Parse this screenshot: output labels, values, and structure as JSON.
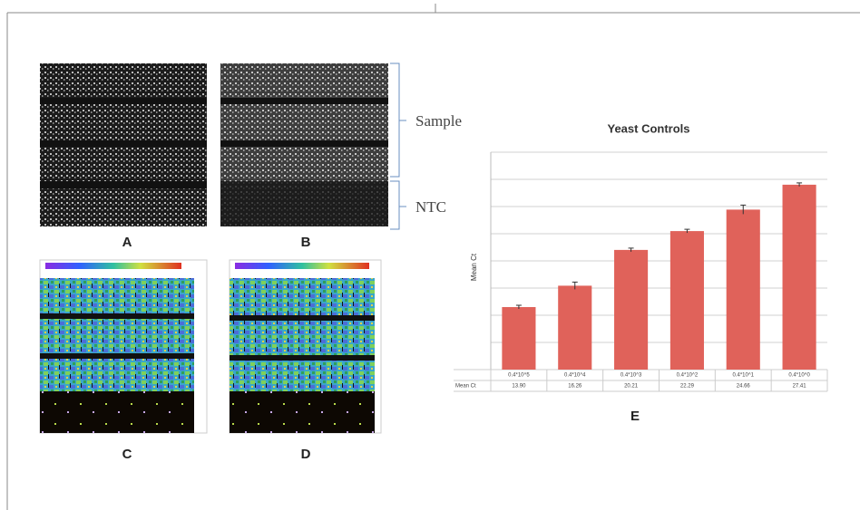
{
  "panel_labels": [
    "A",
    "B",
    "C",
    "D",
    "E"
  ],
  "bracket_labels": [
    "Sample",
    "NTC"
  ],
  "chart_data": {
    "type": "bar",
    "title": "Yeast Controls",
    "y_label": "Mean Ct",
    "categories": [
      "0.4*10^5",
      "0.4*10^4",
      "0.4*10^3",
      "0.4*10^2",
      "0.4*10^1",
      "0.4*10^0"
    ],
    "values": [
      13.9,
      16.26,
      20.21,
      22.29,
      24.66,
      27.41
    ],
    "value_labels": [
      "13.90",
      "16.26",
      "20.21",
      "22.29",
      "24.66",
      "27.41"
    ],
    "errors": [
      0.2,
      0.4,
      0.2,
      0.2,
      0.5,
      0.2
    ],
    "color": "#e0625a",
    "ylim": [
      7,
      31
    ],
    "yticks": [
      7,
      10,
      13,
      16,
      19,
      22,
      25,
      28,
      31
    ],
    "grid": true
  }
}
